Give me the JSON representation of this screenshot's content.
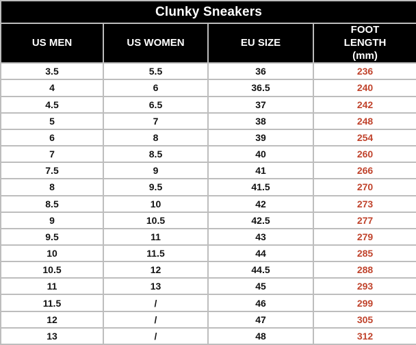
{
  "table": {
    "title": "Clunky Sneakers",
    "columns": [
      "US MEN",
      "US WOMEN",
      "EU SIZE",
      "FOOT LENGTH (mm)"
    ],
    "rows": [
      [
        "3.5",
        "5.5",
        "36",
        "236"
      ],
      [
        "4",
        "6",
        "36.5",
        "240"
      ],
      [
        "4.5",
        "6.5",
        "37",
        "242"
      ],
      [
        "5",
        "7",
        "38",
        "248"
      ],
      [
        "6",
        "8",
        "39",
        "254"
      ],
      [
        "7",
        "8.5",
        "40",
        "260"
      ],
      [
        "7.5",
        "9",
        "41",
        "266"
      ],
      [
        "8",
        "9.5",
        "41.5",
        "270"
      ],
      [
        "8.5",
        "10",
        "42",
        "273"
      ],
      [
        "9",
        "10.5",
        "42.5",
        "277"
      ],
      [
        "9.5",
        "11",
        "43",
        "279"
      ],
      [
        "10",
        "11.5",
        "44",
        "285"
      ],
      [
        "10.5",
        "12",
        "44.5",
        "288"
      ],
      [
        "11",
        "13",
        "45",
        "293"
      ],
      [
        "11.5",
        "/",
        "46",
        "299"
      ],
      [
        "12",
        "/",
        "47",
        "305"
      ],
      [
        "13",
        "/",
        "48",
        "312"
      ]
    ],
    "cell_names": [
      "cell-us-men",
      "cell-us-women",
      "cell-eu-size",
      "cell-foot-length"
    ]
  },
  "colors": {
    "header_bg": "#000000",
    "header_text": "#ffffff",
    "body_text": "#111111",
    "foot_length_text": "#c0432c",
    "grid_border": "#bdbdbd",
    "row_bg": "#ffffff"
  }
}
